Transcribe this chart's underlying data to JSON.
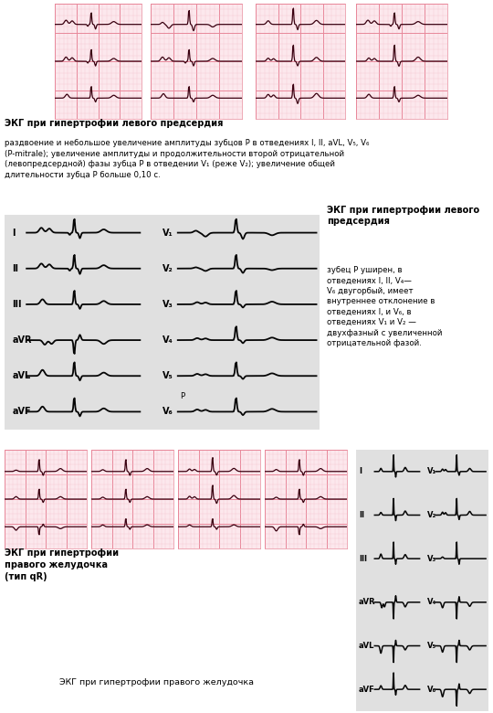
{
  "bg_color": "#ffffff",
  "ecg_grid_light": "#f5c0cc",
  "ecg_grid_dark": "#e8889a",
  "ecg_bg": "#fce8ed",
  "ecg_line_color": "#3a0010",
  "panel_bg": "#e0e0e0",
  "section1_title": "ЭКГ при гипертрофии левого предсердия",
  "section1_desc": "раздвоение и небольшое увеличение амплитуды зубцов Р в отведениях I, II, aVL, V₅, V₆\n(P-mitrale); увеличение амплитуды и продолжительности второй отрицательной\n(левопредсердной) фазы зубца Р в отведении V₁ (реже V₂); увеличение общей\nдлительности зубца Р больше 0,10 с.",
  "section2_title": "ЭКГ при гипертрофии левого\nпредсердия",
  "section2_desc": "зубец Р уширен, в\nотведениях I, II, V₄—\nV₆ двугорбый, имеет\nвнутреннее отклонение в\nотведениях I, и V₆, в\nотведениях V₁ и V₂ —\nдвухфазный с увеличенной\nотрицательной фазой.",
  "section3_title1": "ЭКГ при гипертрофии\nправого желудочка\n(тип qR)",
  "section3_title2": "ЭКГ при гипертрофии правого желудочка",
  "limb_leads": [
    "I",
    "II",
    "III",
    "aVR",
    "aVL",
    "aVF"
  ],
  "chest_leads": [
    "V₁",
    "V₂",
    "V₃",
    "V₄",
    "V₅",
    "V₆"
  ]
}
